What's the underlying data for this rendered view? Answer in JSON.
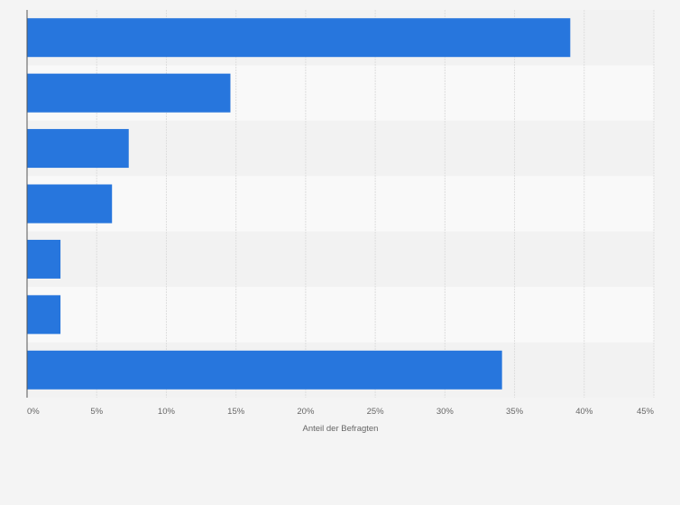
{
  "chart_data": {
    "type": "bar",
    "orientation": "horizontal",
    "categories": [
      "",
      "",
      "",
      "",
      "",
      "",
      ""
    ],
    "values": [
      39,
      14.6,
      7.3,
      6.1,
      2.4,
      2.4,
      34.1
    ],
    "title": "",
    "xlabel": "Anteil der Befragten",
    "ylabel": "",
    "xlim": [
      0,
      45
    ],
    "xticks": [
      0,
      5,
      10,
      15,
      20,
      25,
      30,
      35,
      40,
      45
    ],
    "xtick_labels": [
      "0%",
      "5%",
      "10%",
      "15%",
      "20%",
      "25%",
      "30%",
      "35%",
      "40%",
      "45%"
    ],
    "grid": true,
    "legend": "none",
    "colors": {
      "bar": "#2776dd",
      "background": "#f4f4f4",
      "band_light": "#f9f9f9",
      "band_dark": "#f2f2f2",
      "grid": "#dedede",
      "axis": "#555555",
      "text": "#666666"
    }
  }
}
